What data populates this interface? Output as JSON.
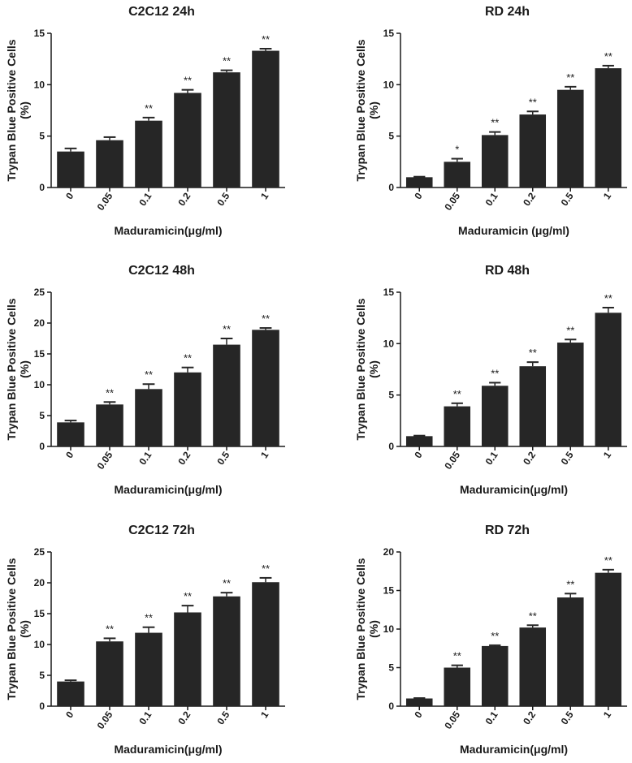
{
  "chart_data": [
    {
      "type": "bar",
      "title": "C2C12 24h",
      "xlabel": "Maduramicin(μg/ml)",
      "ylabel": "Trypan Blue Positive Cells",
      "ylabel_unit": "(%)",
      "categories": [
        "0",
        "0.05",
        "0.1",
        "0.2",
        "0.5",
        "1"
      ],
      "values": [
        3.5,
        4.6,
        6.5,
        9.2,
        11.2,
        13.3
      ],
      "errors": [
        0.3,
        0.3,
        0.3,
        0.3,
        0.2,
        0.2
      ],
      "significance": [
        "",
        "",
        "**",
        "**",
        "**",
        "**"
      ],
      "ylim": [
        0,
        15
      ],
      "yticks": [
        "0",
        "5",
        "10",
        "15"
      ],
      "grid": false,
      "bar_color": "#262626"
    },
    {
      "type": "bar",
      "title": "RD 24h",
      "xlabel": "Maduramicin (μg/ml)",
      "ylabel": "Trypan Blue Positive Cells",
      "ylabel_unit": "(%)",
      "categories": [
        "0",
        "0.05",
        "0.1",
        "0.2",
        "0.5",
        "1"
      ],
      "values": [
        1.0,
        2.5,
        5.1,
        7.1,
        9.5,
        11.6
      ],
      "errors": [
        0.05,
        0.3,
        0.3,
        0.3,
        0.3,
        0.25
      ],
      "significance": [
        "",
        "*",
        "**",
        "**",
        "**",
        "**"
      ],
      "ylim": [
        0,
        15
      ],
      "yticks": [
        "0",
        "5",
        "10",
        "15"
      ],
      "grid": false,
      "bar_color": "#262626"
    },
    {
      "type": "bar",
      "title": "C2C12 48h",
      "xlabel": "Maduramicin(μg/ml)",
      "ylabel": "Trypan Blue Positive Cells",
      "ylabel_unit": "(%)",
      "categories": [
        "0",
        "0.05",
        "0.1",
        "0.2",
        "0.5",
        "1"
      ],
      "values": [
        3.9,
        6.8,
        9.3,
        12.0,
        16.5,
        18.9
      ],
      "errors": [
        0.3,
        0.4,
        0.8,
        0.8,
        1.0,
        0.3
      ],
      "significance": [
        "",
        "**",
        "**",
        "**",
        "**",
        "**"
      ],
      "ylim": [
        0,
        25
      ],
      "yticks": [
        "0",
        "5",
        "10",
        "15",
        "20",
        "25"
      ],
      "grid": false,
      "bar_color": "#262626"
    },
    {
      "type": "bar",
      "title": "RD 48h",
      "xlabel": "Maduramicin(μg/ml)",
      "ylabel": "Trypan Blue Positive Cells",
      "ylabel_unit": "(%)",
      "categories": [
        "0",
        "0.05",
        "0.1",
        "0.2",
        "0.5",
        "1"
      ],
      "values": [
        1.0,
        3.9,
        5.9,
        7.8,
        10.1,
        13.0
      ],
      "errors": [
        0.05,
        0.3,
        0.3,
        0.4,
        0.3,
        0.5
      ],
      "significance": [
        "",
        "**",
        "**",
        "**",
        "**",
        "**"
      ],
      "ylim": [
        0,
        15
      ],
      "yticks": [
        "0",
        "5",
        "10",
        "15"
      ],
      "grid": false,
      "bar_color": "#262626"
    },
    {
      "type": "bar",
      "title": "C2C12 72h",
      "xlabel": "Maduramicin(μg/ml)",
      "ylabel": "Trypan Blue Positive Cells",
      "ylabel_unit": "(%)",
      "categories": [
        "0",
        "0.05",
        "0.1",
        "0.2",
        "0.5",
        "1"
      ],
      "values": [
        4.0,
        10.5,
        11.9,
        15.2,
        17.8,
        20.1
      ],
      "errors": [
        0.2,
        0.5,
        0.9,
        1.1,
        0.6,
        0.7
      ],
      "significance": [
        "",
        "**",
        "**",
        "**",
        "**",
        "**"
      ],
      "ylim": [
        0,
        25
      ],
      "yticks": [
        "0",
        "5",
        "10",
        "15",
        "20",
        "25"
      ],
      "grid": false,
      "bar_color": "#262626"
    },
    {
      "type": "bar",
      "title": "RD 72h",
      "xlabel": "Maduramicin(μg/ml)",
      "ylabel": "Trypan Blue Positive Cells",
      "ylabel_unit": "(%)",
      "categories": [
        "0",
        "0.05",
        "0.1",
        "0.2",
        "0.5",
        "1"
      ],
      "values": [
        1.0,
        5.0,
        7.8,
        10.2,
        14.1,
        17.3
      ],
      "errors": [
        0.05,
        0.3,
        0.1,
        0.3,
        0.5,
        0.4
      ],
      "significance": [
        "",
        "**",
        "**",
        "**",
        "**",
        "**"
      ],
      "ylim": [
        0,
        20
      ],
      "yticks": [
        "0",
        "5",
        "10",
        "15",
        "20"
      ],
      "grid": false,
      "bar_color": "#262626"
    }
  ]
}
